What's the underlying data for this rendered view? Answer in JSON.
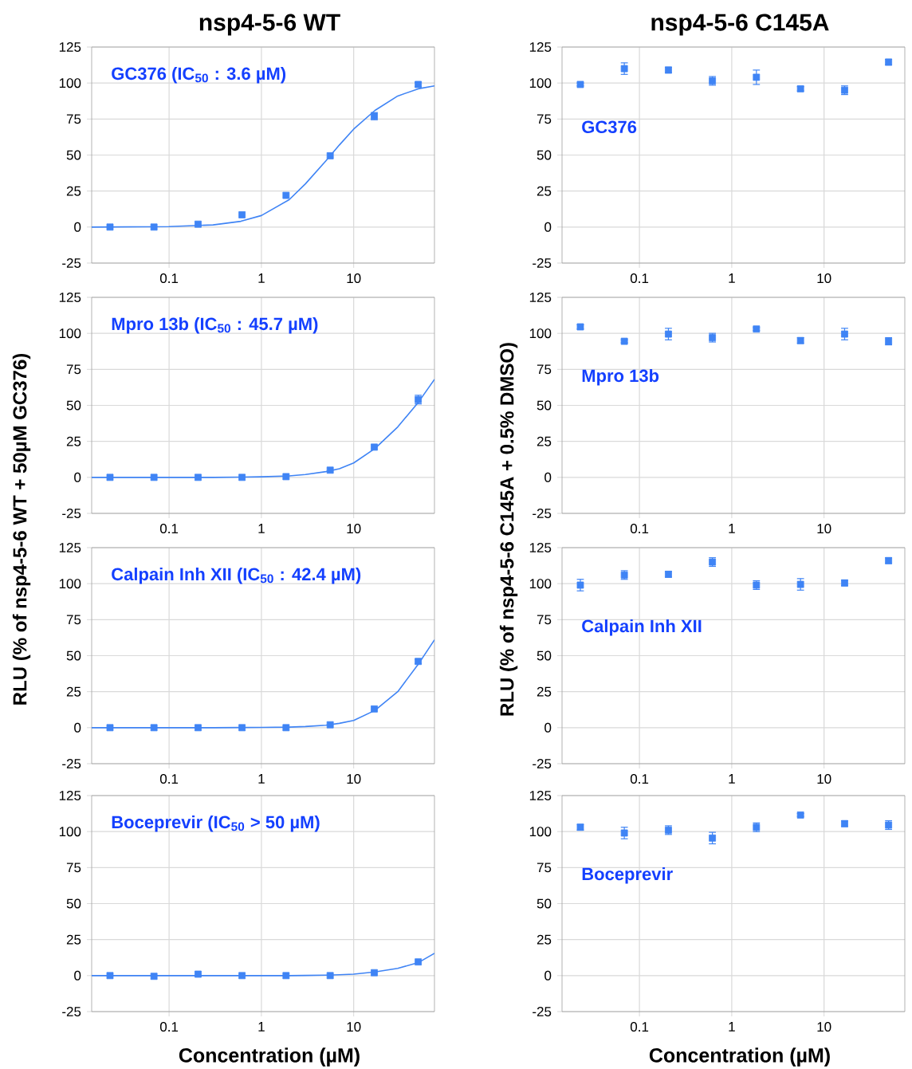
{
  "chart_data": [
    {
      "type": "scatter",
      "title": "nsp4-5-6 WT",
      "annotations": [
        "GC376 (IC$_{50}$ : 3.6 µM)"
      ],
      "log": "x",
      "grid": true,
      "xlim": [
        0.0145,
        75
      ],
      "ylim": [
        -25,
        125
      ],
      "xticks": [
        0.1,
        1,
        10
      ],
      "yticks": [
        -25,
        0,
        25,
        50,
        75,
        100,
        125
      ],
      "x": [
        0.0229,
        0.0686,
        0.206,
        0.617,
        1.85,
        5.56,
        16.7,
        50
      ],
      "series": [
        {
          "marker": "square",
          "color": "#3f84f5",
          "values": [
            0,
            0,
            2,
            8.5,
            22,
            49.5,
            77,
            99
          ],
          "errors": [
            null,
            null,
            null,
            null,
            null,
            null,
            2.5,
            1.5
          ]
        },
        {
          "type": "line",
          "marker": "none",
          "color": "#3f84f5",
          "x": [
            0.0145,
            0.1,
            0.3,
            0.6,
            1,
            2,
            3,
            5,
            7,
            10,
            17,
            30,
            50,
            75
          ],
          "values": [
            0,
            0.3,
            1.5,
            4,
            8,
            19,
            30,
            46,
            57,
            68,
            81,
            91,
            96,
            98
          ]
        }
      ]
    },
    {
      "type": "scatter",
      "title": "nsp4-5-6 C145A",
      "annotations": [
        "GC376"
      ],
      "log": "x",
      "grid": true,
      "xlim": [
        0.0145,
        75
      ],
      "ylim": [
        -25,
        125
      ],
      "xticks": [
        0.1,
        1,
        10
      ],
      "yticks": [
        -25,
        0,
        25,
        50,
        75,
        100,
        125
      ],
      "x": [
        0.0229,
        0.0686,
        0.206,
        0.617,
        1.85,
        5.56,
        16.7,
        50
      ],
      "series": [
        {
          "marker": "square",
          "color": "#3f84f5",
          "values": [
            99,
            110,
            109,
            101.5,
            104,
            96,
            95,
            114.5
          ],
          "errors": [
            1,
            4,
            2,
            3,
            5,
            1.5,
            3,
            2
          ]
        }
      ]
    },
    {
      "type": "scatter",
      "annotations": [
        "Mpro 13b (IC$_{50}$ : 45.7 µM)"
      ],
      "ylabel": "RLU (% of nsp4-5-6 WT + 50µM GC376)",
      "log": "x",
      "grid": true,
      "xlim": [
        0.0145,
        75
      ],
      "ylim": [
        -25,
        125
      ],
      "xticks": [
        0.1,
        1,
        10
      ],
      "yticks": [
        -25,
        0,
        25,
        50,
        75,
        100,
        125
      ],
      "x": [
        0.0229,
        0.0686,
        0.206,
        0.617,
        1.85,
        5.56,
        16.7,
        50
      ],
      "series": [
        {
          "marker": "square",
          "color": "#3f84f5",
          "values": [
            0,
            0,
            0,
            0,
            0.5,
            5,
            21,
            54
          ],
          "errors": [
            null,
            null,
            null,
            null,
            null,
            null,
            null,
            3
          ]
        },
        {
          "type": "line",
          "marker": "none",
          "color": "#3f84f5",
          "x": [
            0.0145,
            0.1,
            0.3,
            0.6,
            1,
            2,
            3,
            5,
            7,
            10,
            17,
            30,
            50,
            75
          ],
          "values": [
            0,
            0,
            0,
            0.2,
            0.4,
            1,
            2,
            4,
            6,
            10,
            20,
            35,
            52,
            68
          ]
        }
      ]
    },
    {
      "type": "scatter",
      "annotations": [
        "Mpro 13b"
      ],
      "ylabel": "RLU (% of nsp4-5-6 C145A + 0.5% DMSO)",
      "log": "x",
      "grid": true,
      "xlim": [
        0.0145,
        75
      ],
      "ylim": [
        -25,
        125
      ],
      "xticks": [
        0.1,
        1,
        10
      ],
      "yticks": [
        -25,
        0,
        25,
        50,
        75,
        100,
        125
      ],
      "x": [
        0.0229,
        0.0686,
        0.206,
        0.617,
        1.85,
        5.56,
        16.7,
        50
      ],
      "series": [
        {
          "marker": "square",
          "color": "#3f84f5",
          "values": [
            104.5,
            94.5,
            99.5,
            97,
            103,
            95,
            99.5,
            94.5
          ],
          "errors": [
            1.5,
            1,
            4,
            3,
            1,
            2,
            4,
            2.5
          ]
        }
      ]
    },
    {
      "type": "scatter",
      "annotations": [
        "Calpain Inh XII (IC$_{50}$ : 42.4 µM)"
      ],
      "log": "x",
      "grid": true,
      "xlim": [
        0.0145,
        75
      ],
      "ylim": [
        -25,
        125
      ],
      "xticks": [
        0.1,
        1,
        10
      ],
      "yticks": [
        -25,
        0,
        25,
        50,
        75,
        100,
        125
      ],
      "x": [
        0.0229,
        0.0686,
        0.206,
        0.617,
        1.85,
        5.56,
        16.7,
        50
      ],
      "series": [
        {
          "marker": "square",
          "color": "#3f84f5",
          "values": [
            0,
            0,
            0,
            0,
            0,
            2,
            13,
            46
          ],
          "errors": [
            null,
            null,
            null,
            null,
            null,
            null,
            null,
            1.5
          ]
        },
        {
          "type": "line",
          "marker": "none",
          "color": "#3f84f5",
          "x": [
            0.0145,
            0.1,
            0.3,
            0.6,
            1,
            2,
            3,
            5,
            7,
            10,
            17,
            30,
            50,
            75
          ],
          "values": [
            0,
            0,
            0,
            0.1,
            0.2,
            0.4,
            0.8,
            1.7,
            3,
            5,
            12,
            25,
            44,
            61
          ]
        }
      ]
    },
    {
      "type": "scatter",
      "annotations": [
        "Calpain Inh XII"
      ],
      "log": "x",
      "grid": true,
      "xlim": [
        0.0145,
        75
      ],
      "ylim": [
        -25,
        125
      ],
      "xticks": [
        0.1,
        1,
        10
      ],
      "yticks": [
        -25,
        0,
        25,
        50,
        75,
        100,
        125
      ],
      "x": [
        0.0229,
        0.0686,
        0.206,
        0.617,
        1.85,
        5.56,
        16.7,
        50
      ],
      "series": [
        {
          "marker": "square",
          "color": "#3f84f5",
          "values": [
            99,
            106,
            106.5,
            115,
            99,
            99.5,
            100.5,
            116
          ],
          "errors": [
            4,
            3,
            2,
            3,
            3,
            4,
            2,
            2
          ]
        }
      ]
    },
    {
      "type": "scatter",
      "annotations": [
        "Boceprevir (IC$_{50}$ > 50 µM)"
      ],
      "xlabel": "Concentration (µM)",
      "log": "x",
      "grid": true,
      "xlim": [
        0.0145,
        75
      ],
      "ylim": [
        -25,
        125
      ],
      "xticks": [
        0.1,
        1,
        10
      ],
      "yticks": [
        -25,
        0,
        25,
        50,
        75,
        100,
        125
      ],
      "x": [
        0.0229,
        0.0686,
        0.206,
        0.617,
        1.85,
        5.56,
        16.7,
        50
      ],
      "series": [
        {
          "marker": "square",
          "color": "#3f84f5",
          "values": [
            0,
            -0.5,
            1,
            0,
            0,
            0,
            2,
            9.5
          ]
        },
        {
          "type": "line",
          "marker": "none",
          "color": "#3f84f5",
          "x": [
            0.0145,
            0.1,
            0.3,
            0.6,
            1,
            2,
            3,
            5,
            7,
            10,
            17,
            30,
            50,
            75
          ],
          "values": [
            0,
            0,
            0,
            0,
            0,
            0,
            0.1,
            0.3,
            0.6,
            1,
            2.5,
            5,
            9,
            15.5
          ]
        }
      ]
    },
    {
      "type": "scatter",
      "annotations": [
        "Boceprevir"
      ],
      "xlabel": "Concentration (µM)",
      "log": "x",
      "grid": true,
      "xlim": [
        0.0145,
        75
      ],
      "ylim": [
        -25,
        125
      ],
      "xticks": [
        0.1,
        1,
        10
      ],
      "yticks": [
        -25,
        0,
        25,
        50,
        75,
        100,
        125
      ],
      "x": [
        0.0229,
        0.0686,
        0.206,
        0.617,
        1.85,
        5.56,
        16.7,
        50
      ],
      "series": [
        {
          "marker": "square",
          "color": "#3f84f5",
          "values": [
            103,
            99,
            101,
            95.5,
            103,
            111.5,
            105.5,
            104.5
          ],
          "errors": [
            2,
            4,
            3,
            4,
            3,
            1,
            2,
            3
          ]
        }
      ]
    }
  ]
}
